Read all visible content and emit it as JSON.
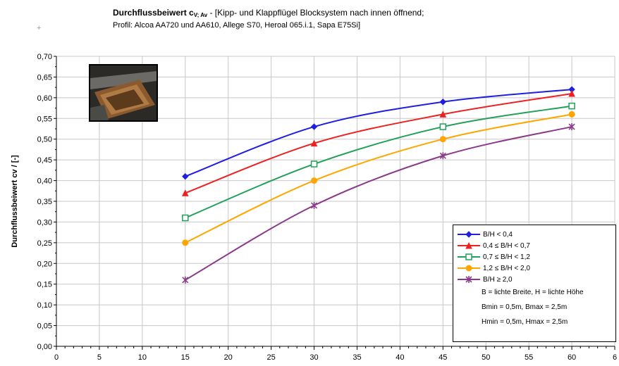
{
  "header": {
    "title_bold": "Durchflussbeiwert c",
    "title_sub": "V; Av",
    "title_rest": " - [Kipp- und Klappflügel Blocksystem nach innen öffnend;",
    "subtitle": "Profil: Alcoa AA720 und AA610, Allege S70, Heroal 065.i.1, Sapa E75Si]"
  },
  "decor": {
    "crosshair": "+",
    "photo": "window-sash-photo"
  },
  "chart_data": {
    "type": "line",
    "title": "Durchflussbeiwert cV; Av - [Kipp- und Klappflügel Blocksystem nach innen öffnend; Profil: Alcoa AA720 und AA610, Allege S70, Heroal 065.i.1, Sapa E75Si]",
    "ylabel": "Durchflussbeiwert cv / [-]",
    "xlabel": "",
    "xlim": [
      0,
      65
    ],
    "ylim": [
      0,
      0.7
    ],
    "x_ticks": [
      "0",
      "5",
      "10",
      "15",
      "20",
      "25",
      "30",
      "35",
      "40",
      "45",
      "50",
      "55",
      "60",
      "6"
    ],
    "y_ticks": [
      "0,00",
      "0,05",
      "0,10",
      "0,15",
      "0,20",
      "0,25",
      "0,30",
      "0,35",
      "0,40",
      "0,45",
      "0,50",
      "0,55",
      "0,60",
      "0,65",
      "0,70"
    ],
    "grid": true,
    "legend_position": "bottom-right",
    "x": [
      15,
      30,
      45,
      60
    ],
    "series": [
      {
        "name": "B/H < 0,4",
        "color": "#1f1fe0",
        "marker": "diamond",
        "values": [
          0.41,
          0.53,
          0.59,
          0.62
        ]
      },
      {
        "name": "0,4 ≤ B/H < 0,7",
        "color": "#ee2020",
        "marker": "triangle",
        "values": [
          0.37,
          0.49,
          0.56,
          0.61
        ]
      },
      {
        "name": "0,7 ≤ B/H < 1,2",
        "color": "#22a05a",
        "marker": "square",
        "values": [
          0.31,
          0.44,
          0.53,
          0.58
        ]
      },
      {
        "name": "1,2 ≤ B/H < 2,0",
        "color": "#ffa500",
        "marker": "circle",
        "values": [
          0.25,
          0.4,
          0.5,
          0.56
        ]
      },
      {
        "name": "B/H ≥ 2,0",
        "color": "#8b3a8b",
        "marker": "star",
        "values": [
          0.16,
          0.34,
          0.46,
          0.53
        ]
      }
    ],
    "notes": [
      "B = lichte Breite, H = lichte Höhe",
      "Bmin = 0,5m, Bmax = 2,5m",
      "Hmin = 0,5m, Hmax = 2,5m"
    ]
  }
}
